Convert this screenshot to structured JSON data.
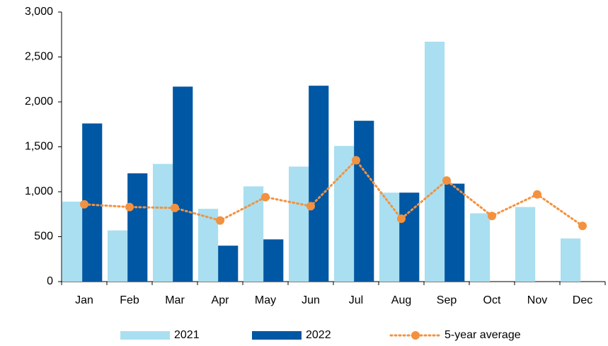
{
  "chart_data": {
    "type": "bar",
    "categories": [
      "Jan",
      "Feb",
      "Mar",
      "Apr",
      "May",
      "Jun",
      "Jul",
      "Aug",
      "Sep",
      "Oct",
      "Nov",
      "Dec"
    ],
    "series": [
      {
        "name": "2021",
        "type": "bar",
        "color": "#a9dff0",
        "values": [
          890,
          570,
          1310,
          810,
          1060,
          1280,
          1510,
          990,
          2670,
          760,
          830,
          480
        ]
      },
      {
        "name": "2022",
        "type": "bar",
        "color": "#0057a3",
        "values": [
          1760,
          1205,
          2170,
          400,
          470,
          2180,
          1790,
          990,
          1090,
          null,
          null,
          null
        ]
      },
      {
        "name": "5-year average",
        "type": "line",
        "color": "#f4913e",
        "values": [
          860,
          830,
          820,
          680,
          940,
          840,
          1350,
          700,
          1125,
          730,
          970,
          620
        ]
      }
    ],
    "ylim": [
      0,
      3000
    ],
    "yticks": [
      0,
      500,
      {
        "value": 1000,
        "label": "1,000"
      },
      {
        "value": 1500,
        "label": "1,500"
      },
      {
        "value": 2000,
        "label": "2,000"
      },
      {
        "value": 2500,
        "label": "2,500"
      },
      {
        "value": 3000,
        "label": "3,000"
      }
    ],
    "grid": false
  }
}
